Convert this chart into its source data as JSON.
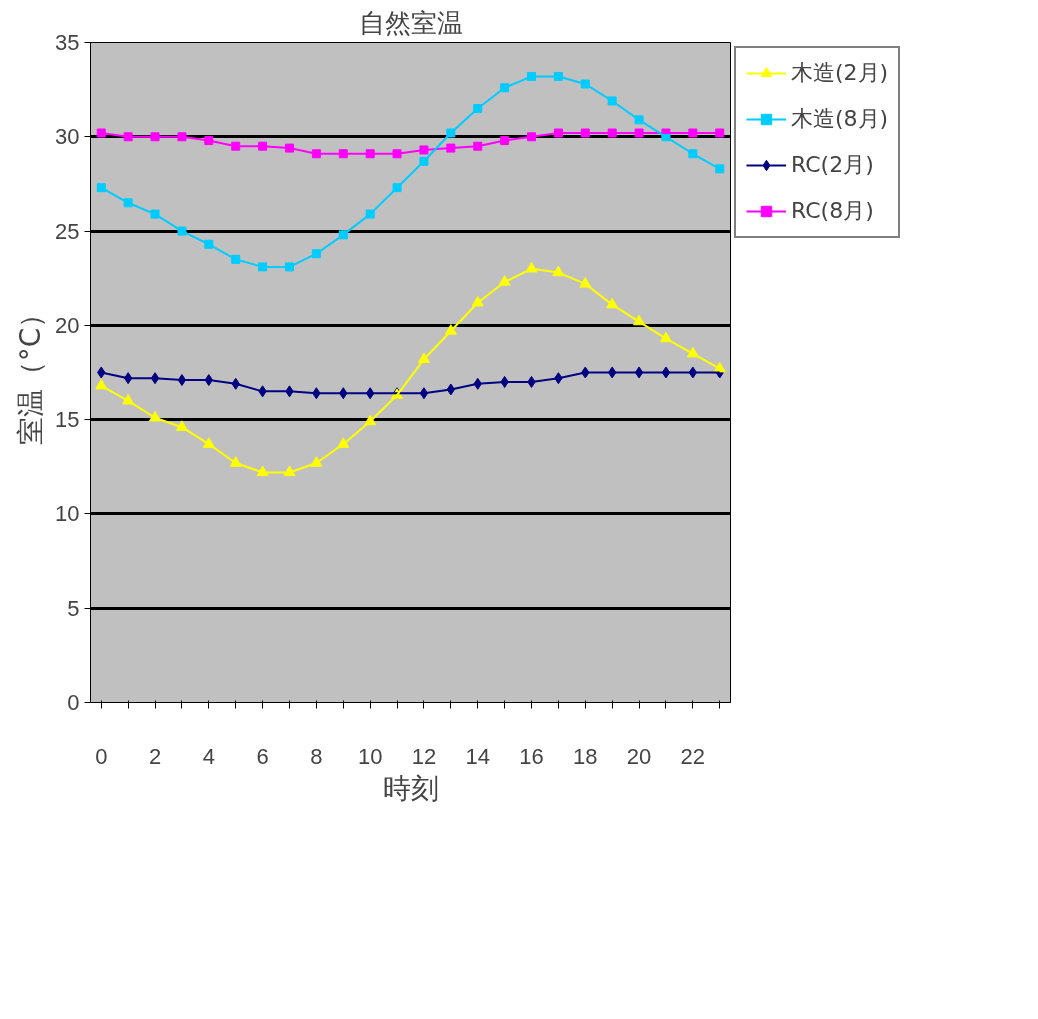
{
  "chart_data": {
    "type": "line",
    "title": "自然室温",
    "xlabel": "時刻",
    "ylabel": "室温（°C）",
    "categories": [
      "0",
      null,
      "2",
      null,
      "4",
      null,
      "6",
      null,
      "8",
      null,
      "10",
      null,
      "12",
      null,
      "14",
      null,
      "16",
      null,
      "18",
      null,
      "20",
      null,
      "22",
      null
    ],
    "ylim": [
      0,
      35
    ],
    "yticks": [
      0,
      5,
      10,
      15,
      20,
      25,
      30,
      35
    ],
    "grid": "y",
    "legend": "right",
    "series": [
      {
        "name": "木造(2月)",
        "color": "#ffff00",
        "marker": "triangle",
        "values": [
          16.8,
          16.0,
          15.1,
          14.6,
          13.7,
          12.7,
          12.2,
          12.2,
          12.7,
          13.7,
          14.9,
          16.3,
          18.2,
          19.7,
          21.2,
          22.3,
          23.0,
          22.8,
          22.2,
          21.1,
          20.2,
          19.3,
          18.5,
          17.7
        ]
      },
      {
        "name": "木造(8月)",
        "color": "#00ccff",
        "marker": "square",
        "values": [
          27.3,
          26.5,
          25.9,
          25.0,
          24.3,
          23.5,
          23.1,
          23.1,
          23.8,
          24.8,
          25.9,
          27.3,
          28.7,
          30.2,
          31.5,
          32.6,
          33.2,
          33.2,
          32.8,
          31.9,
          30.9,
          30.0,
          29.1,
          28.3
        ]
      },
      {
        "name": "RC(2月)",
        "color": "#000080",
        "marker": "diamond",
        "values": [
          17.5,
          17.2,
          17.2,
          17.1,
          17.1,
          16.9,
          16.5,
          16.5,
          16.4,
          16.4,
          16.4,
          16.4,
          16.4,
          16.6,
          16.9,
          17.0,
          17.0,
          17.2,
          17.5,
          17.5,
          17.5,
          17.5,
          17.5,
          17.5
        ]
      },
      {
        "name": "RC(8月)",
        "color": "#ff00ff",
        "marker": "square",
        "values": [
          30.2,
          30.0,
          30.0,
          30.0,
          29.8,
          29.5,
          29.5,
          29.4,
          29.1,
          29.1,
          29.1,
          29.1,
          29.3,
          29.4,
          29.5,
          29.8,
          30.0,
          30.2,
          30.2,
          30.2,
          30.2,
          30.2,
          30.2,
          30.2
        ]
      }
    ]
  }
}
